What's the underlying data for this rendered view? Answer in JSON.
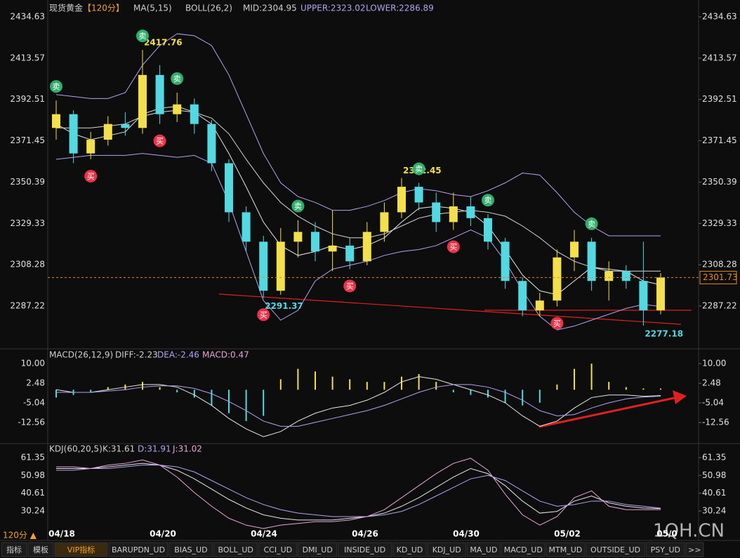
{
  "header": {
    "symbol": "现货黄金",
    "period": "【120分】",
    "ma": "MA(5,15)",
    "boll": "BOLL(26,2)",
    "mid": "MID:2304.95",
    "upper": "UPPER:2323.02",
    "lower": "LOWER:2286.89"
  },
  "macd_header": {
    "name": "MACD(26,12,9)",
    "diff": "DIFF:-2.23",
    "dea": "DEA:-2.46",
    "macd": "MACD:0.47"
  },
  "kdj_header": {
    "name": "KDJ(60,20,5)",
    "k": "K:31.61",
    "d": "D:31.91",
    "j": "J:31.02"
  },
  "signals": {
    "buy": "买",
    "sell": "卖"
  },
  "dates": [
    "04/18",
    "04/20",
    "04/24",
    "04/26",
    "04/30",
    "05/02",
    "05/0"
  ],
  "period_button": "120分 ▲",
  "watermark": "1QH.CN",
  "tabs": [
    "指标",
    "模板",
    "VIP指标",
    "BARUPDN_UD",
    "BIAS_UD",
    "BOLL_UD",
    "CCI_UD",
    "DMI_UD",
    "INSIDE_UD",
    "KD_UD",
    "KDJ_UD",
    "MA_UD",
    "MACD_UD",
    "MTM_UD",
    "OUTSIDE_UD",
    "PSY_UD",
    ">>"
  ],
  "chart_data": [
    {
      "type": "candlestick",
      "ylim": [
        2266.1,
        2440.35
      ],
      "yticks": [
        2434.63,
        2413.57,
        2392.51,
        2371.45,
        2350.39,
        2329.33,
        2308.28,
        2287.22
      ],
      "up_color": "#f3e04a",
      "down_color": "#52d9e2",
      "open": [
        2378,
        2385,
        2365,
        2372,
        2380,
        2378,
        2405,
        2385,
        2390,
        2380,
        2360,
        2335,
        2320,
        2295,
        2320,
        2325,
        2315,
        2318,
        2310,
        2325,
        2335,
        2348,
        2340,
        2330,
        2338,
        2332,
        2320,
        2300,
        2285,
        2290,
        2312,
        2320,
        2300,
        2305,
        2300,
        2285
      ],
      "high": [
        2392,
        2387,
        2376,
        2384,
        2386,
        2417.76,
        2410,
        2396,
        2393,
        2382,
        2362,
        2338,
        2323,
        2327,
        2331,
        2330,
        2336,
        2322,
        2330,
        2340,
        2352.45,
        2350,
        2345,
        2345,
        2343,
        2334,
        2322,
        2302,
        2294,
        2316,
        2326,
        2322,
        2310,
        2308,
        2320,
        2304
      ],
      "low": [
        2372,
        2360,
        2362,
        2369,
        2374,
        2375,
        2380,
        2381,
        2375,
        2356,
        2330,
        2315,
        2291.37,
        2293,
        2312,
        2310,
        2305,
        2306,
        2308,
        2320,
        2332,
        2336,
        2325,
        2326,
        2328,
        2316,
        2296,
        2282,
        2282,
        2287,
        2305,
        2295,
        2290,
        2296,
        2277.18,
        2283
      ],
      "close": [
        2385,
        2365,
        2372,
        2380,
        2378,
        2405,
        2385,
        2390,
        2380,
        2360,
        2335,
        2320,
        2295,
        2320,
        2325,
        2315,
        2318,
        2310,
        2325,
        2335,
        2348,
        2340,
        2330,
        2338,
        2332,
        2320,
        2300,
        2285,
        2290,
        2312,
        2320,
        2300,
        2305,
        2300,
        2285,
        2301.73
      ],
      "series": [
        {
          "name": "MA",
          "color": "#e8e8e8",
          "values": [
            2380,
            2375,
            2372,
            2374,
            2376,
            2385,
            2388,
            2389,
            2386,
            2380,
            2365,
            2348,
            2330,
            2318,
            2313,
            2315,
            2318,
            2316,
            2318,
            2322,
            2330,
            2337,
            2338,
            2337,
            2335,
            2328,
            2316,
            2303,
            2295,
            2293,
            2300,
            2307,
            2306,
            2305,
            2300,
            2298
          ]
        },
        {
          "name": "UPPER",
          "color": "#b4a3f0",
          "values": [
            2395,
            2394,
            2393,
            2393,
            2396,
            2410,
            2420,
            2426,
            2425,
            2420,
            2405,
            2385,
            2365,
            2350,
            2343,
            2340,
            2336,
            2336,
            2338,
            2341,
            2345,
            2347,
            2346,
            2344,
            2343,
            2346,
            2350,
            2355,
            2354,
            2345,
            2335,
            2328,
            2323,
            2323,
            2323,
            2323
          ]
        },
        {
          "name": "MID",
          "color": "#d8d8d8",
          "values": [
            2378,
            2378,
            2378,
            2379,
            2380,
            2384,
            2386,
            2387,
            2386,
            2383,
            2375,
            2362,
            2350,
            2340,
            2333,
            2328,
            2324,
            2322,
            2322,
            2324,
            2328,
            2332,
            2334,
            2335,
            2336,
            2335,
            2333,
            2328,
            2322,
            2315,
            2310,
            2307,
            2305,
            2305,
            2305,
            2305
          ]
        },
        {
          "name": "LOWER",
          "color": "#b4a3f0",
          "values": [
            2362,
            2363,
            2364,
            2364,
            2364,
            2365,
            2364,
            2363,
            2364,
            2360,
            2340,
            2315,
            2290,
            2280,
            2285,
            2300,
            2306,
            2308,
            2310,
            2313,
            2315,
            2316,
            2318,
            2322,
            2326,
            2322,
            2310,
            2295,
            2282,
            2275,
            2277,
            2280,
            2283,
            2286,
            2288,
            2287
          ]
        }
      ]
    },
    {
      "type": "macd",
      "ylim": [
        -19.55,
        15.4
      ],
      "yticks": [
        {
          "value": 10,
          "label": "10.00"
        },
        2.48,
        -5.04,
        -12.56
      ],
      "hist": [
        -3,
        -2,
        -1,
        1,
        2,
        3,
        1,
        -1,
        -3,
        -6,
        -9,
        -12,
        -10,
        4,
        8,
        7,
        5,
        4,
        3,
        3,
        5,
        6,
        3,
        -1,
        -2,
        -3,
        -5,
        -6,
        -5,
        2,
        8,
        10,
        3,
        1,
        0.5,
        0.47
      ],
      "series": [
        {
          "name": "DIFF",
          "color": "#e8e8e8",
          "values": [
            0,
            -1,
            -1,
            0,
            1,
            2,
            2,
            1,
            -2,
            -6,
            -11,
            -15,
            -18,
            -16,
            -12,
            -9,
            -7,
            -6,
            -4,
            -1,
            3,
            5,
            4,
            2,
            0,
            -2,
            -5,
            -10,
            -14,
            -12,
            -7,
            -3,
            -2,
            -2,
            -2.5,
            -2.23
          ]
        },
        {
          "name": "DEA",
          "color": "#b4a3f0",
          "values": [
            -1,
            -1,
            -1,
            -0.5,
            0,
            1,
            1.5,
            1.5,
            0.5,
            -1.5,
            -4.5,
            -8,
            -12,
            -14,
            -14,
            -12.5,
            -11,
            -9.5,
            -8,
            -6,
            -3.5,
            -1,
            1,
            2,
            2,
            1,
            -1,
            -4,
            -8,
            -10,
            -9.5,
            -7,
            -5,
            -3.5,
            -2.8,
            -2.46
          ]
        }
      ]
    },
    {
      "type": "kdj",
      "ylim": [
        19.2,
        66.26
      ],
      "yticks": [
        61.35,
        50.98,
        40.61,
        30.24
      ],
      "series": [
        {
          "name": "K",
          "color": "#e8e8e8",
          "values": [
            55,
            55,
            55,
            56,
            57,
            58,
            57,
            54,
            49,
            43,
            37,
            32,
            28,
            26,
            25,
            25,
            25,
            26,
            27,
            29,
            33,
            38,
            44,
            50,
            55,
            52,
            45,
            36,
            29,
            30,
            36,
            39,
            35,
            33,
            32,
            31.61
          ]
        },
        {
          "name": "D",
          "color": "#b4a3f0",
          "values": [
            54,
            54,
            55,
            55,
            56,
            57,
            57,
            56,
            53,
            48,
            43,
            38,
            34,
            31,
            29,
            28,
            27,
            27,
            27,
            28,
            30,
            34,
            39,
            44,
            49,
            51,
            48,
            42,
            36,
            33,
            34,
            36,
            36,
            34,
            33,
            31.91
          ]
        },
        {
          "name": "J",
          "color": "#e6a6d8",
          "values": [
            56,
            56,
            55,
            57,
            58,
            60,
            57,
            50,
            41,
            33,
            26,
            22,
            20,
            22,
            23,
            24,
            24,
            25,
            27,
            31,
            38,
            45,
            52,
            58,
            61,
            54,
            40,
            28,
            22,
            27,
            38,
            42,
            33,
            31,
            31,
            31.02
          ]
        }
      ]
    }
  ]
}
